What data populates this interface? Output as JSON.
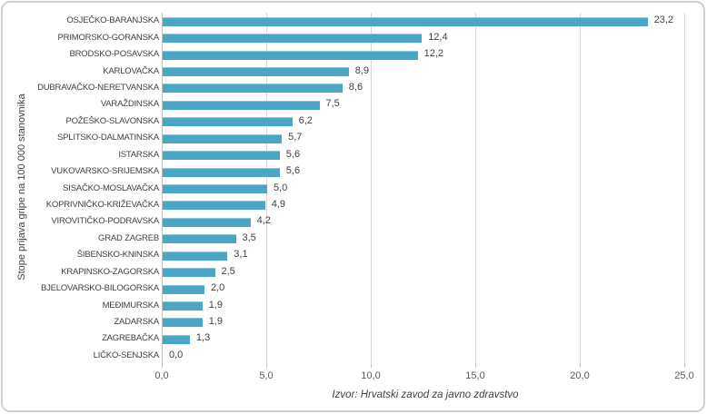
{
  "chart_data": {
    "type": "bar",
    "orientation": "horizontal",
    "title": "",
    "categories": [
      "OSJEČKO-BARANJSKA",
      "PRIMORSKO-GORANSKA",
      "BRODSKO-POSAVSKA",
      "KARLOVAČKA",
      "DUBRAVAČKO-NERETVANSKA",
      "VARAŽDINSKA",
      "POŽEŠKO-SLAVONSKA",
      "SPLITSKO-DALMATINSKA",
      "ISTARSKA",
      "VUKOVARSKO-SRIJEMSKA",
      "SISAČKO-MOSLAVAČKA",
      "KOPRIVNIČKO-KRIŽEVAČKA",
      "VIROVITIČKO-PODRAVSKA",
      "GRAD ZAGREB",
      "ŠIBENSKO-KNINSKA",
      "KRAPINSKO-ZAGORSKA",
      "BJELOVARSKO-BILOGORSKA",
      "MEĐIMURSKA",
      "ZADARSKA",
      "ZAGREBAČKA",
      "LIČKO-SENJSKA"
    ],
    "values": [
      23.2,
      12.4,
      12.2,
      8.9,
      8.6,
      7.5,
      6.2,
      5.7,
      5.6,
      5.6,
      5.0,
      4.9,
      4.2,
      3.5,
      3.1,
      2.5,
      2.0,
      1.9,
      1.9,
      1.3,
      0.0
    ],
    "value_labels": [
      "23,2",
      "12,4",
      "12,2",
      "8,9",
      "8,6",
      "7,5",
      "6,2",
      "5,7",
      "5,6",
      "5,6",
      "5,0",
      "4,9",
      "4,2",
      "3,5",
      "3,1",
      "2,5",
      "2,0",
      "1,9",
      "1,9",
      "1,3",
      "0,0"
    ],
    "ylabel": "Stope prijava gripe na 100 000 stanovnika",
    "xlabel": "Izvor: Hrvatski zavod za javno zdravstvo",
    "xlim": [
      0,
      25
    ],
    "x_ticks": [
      0,
      5,
      10,
      15,
      20,
      25
    ],
    "x_tick_labels": [
      "0,0",
      "5,0",
      "10,0",
      "15,0",
      "20,0",
      "25,0"
    ],
    "grid": "vertical-only",
    "legend": "none",
    "bar_color": "#49a7c5",
    "gridline_color": "#d9d9d9",
    "axis_line_color": "#bfbfbf",
    "label_color": "#404040",
    "tick_label_color": "#595959",
    "frame_border_color": "#d0d0d0"
  }
}
